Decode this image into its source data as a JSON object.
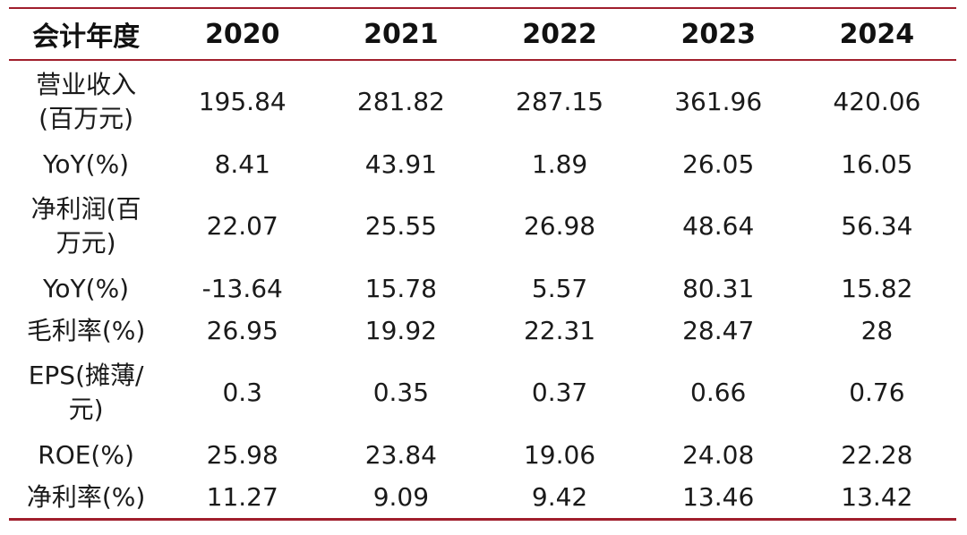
{
  "columns": [
    "会计年度",
    "2020",
    "2021",
    "2022",
    "2023",
    "2024"
  ],
  "rows": [
    {
      "label": "营业收入\n(百万元)",
      "values": [
        "195.84",
        "281.82",
        "287.15",
        "361.96",
        "420.06"
      ]
    },
    {
      "label": "YoY(%)",
      "values": [
        "8.41",
        "43.91",
        "1.89",
        "26.05",
        "16.05"
      ]
    },
    {
      "label": "净利润(百\n万元)",
      "values": [
        "22.07",
        "25.55",
        "26.98",
        "48.64",
        "56.34"
      ]
    },
    {
      "label": "YoY(%)",
      "values": [
        "-13.64",
        "15.78",
        "5.57",
        "80.31",
        "15.82"
      ]
    },
    {
      "label": "毛利率(%)",
      "values": [
        "26.95",
        "19.92",
        "22.31",
        "28.47",
        "28"
      ]
    },
    {
      "label": "EPS(摊薄/\n元)",
      "values": [
        "0.3",
        "0.35",
        "0.37",
        "0.66",
        "0.76"
      ]
    },
    {
      "label": "ROE(%)",
      "values": [
        "25.98",
        "23.84",
        "19.06",
        "24.08",
        "22.28"
      ]
    },
    {
      "label": "净利率(%)",
      "values": [
        "11.27",
        "9.09",
        "9.42",
        "13.46",
        "13.42"
      ]
    }
  ],
  "colors": {
    "rule": "#a01e2c",
    "text": "#111111"
  }
}
